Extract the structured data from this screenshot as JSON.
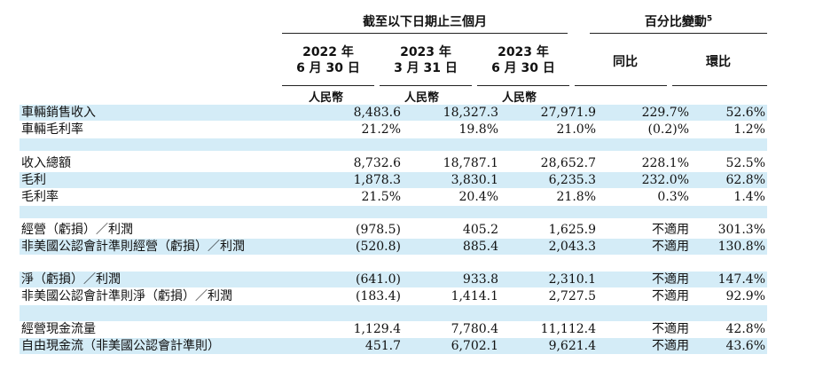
{
  "header": {
    "period_group": "截至以下日期止三個月",
    "change_group": "百分比變動",
    "change_note": "5"
  },
  "columns": [
    {
      "line1": "2022 年",
      "line2": "6 月 30 日",
      "unit": "人民幣"
    },
    {
      "line1": "2023 年",
      "line2": "3 月 31 日",
      "unit": "人民幣"
    },
    {
      "line1": "2023 年",
      "line2": "6 月 30 日",
      "unit": "人民幣"
    },
    {
      "line1": "同比"
    },
    {
      "line1": "環比"
    }
  ],
  "rows": [
    {
      "label": "車輛銷售收入",
      "values": [
        "8,483.6",
        "18,327.3",
        "27,971.9",
        "229.7%",
        "52.6%"
      ]
    },
    {
      "label": "車輛毛利率",
      "values": [
        "21.2%",
        "19.8%",
        "21.0%",
        "(0.2)%",
        "1.2%"
      ]
    },
    {
      "label": "收入總額",
      "values": [
        "8,732.6",
        "18,787.1",
        "28,652.7",
        "228.1%",
        "52.5%"
      ]
    },
    {
      "label": "毛利",
      "values": [
        "1,878.3",
        "3,830.1",
        "6,235.3",
        "232.0%",
        "62.8%"
      ]
    },
    {
      "label": "毛利率",
      "values": [
        "21.5%",
        "20.4%",
        "21.8%",
        "0.3%",
        "1.4%"
      ]
    },
    {
      "label": "經營（虧損）／利潤",
      "values": [
        "(978.5)",
        "405.2",
        "1,625.9",
        "不適用",
        "301.3%"
      ]
    },
    {
      "label": "非美國公認會計準則經營（虧損）／利潤",
      "values": [
        "(520.8)",
        "885.4",
        "2,043.3",
        "不適用",
        "130.8%"
      ]
    },
    {
      "label": "淨（虧損）／利潤",
      "values": [
        "(641.0)",
        "933.8",
        "2,310.1",
        "不適用",
        "147.4%"
      ]
    },
    {
      "label": "非美國公認會計準則淨（虧損）／利潤",
      "values": [
        "(183.4)",
        "1,414.1",
        "2,727.5",
        "不適用",
        "92.9%"
      ]
    },
    {
      "label": "經營現金流量",
      "values": [
        "1,129.4",
        "7,780.4",
        "11,112.4",
        "不適用",
        "42.8%"
      ]
    },
    {
      "label": "自由現金流（非美國公認會計準則）",
      "values": [
        "451.7",
        "6,702.1",
        "9,621.4",
        "不適用",
        "43.6%"
      ]
    }
  ]
}
